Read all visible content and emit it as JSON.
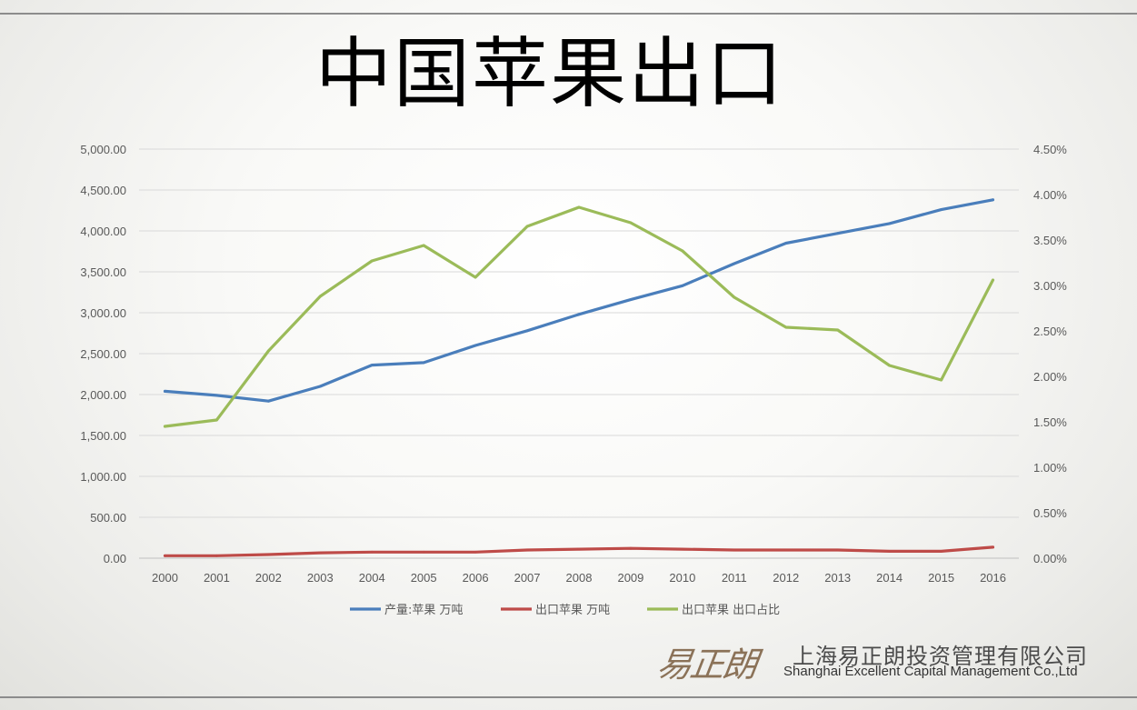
{
  "page": {
    "title": "中国苹果出口",
    "logo": {
      "mark": "易正朗",
      "name_cn": "上海易正朗投资管理有限公司",
      "name_en": "Shanghai Excellent Capital Management Co.,Ltd"
    }
  },
  "chart_data": {
    "type": "line",
    "title": "中国苹果出口",
    "categories": [
      "2000",
      "2001",
      "2002",
      "2003",
      "2004",
      "2005",
      "2006",
      "2007",
      "2008",
      "2009",
      "2010",
      "2011",
      "2012",
      "2013",
      "2014",
      "2015",
      "2016"
    ],
    "y_left": {
      "min": 0,
      "max": 5000,
      "step": 500,
      "ticks": [
        "0.00",
        "500.00",
        "1,000.00",
        "1,500.00",
        "2,000.00",
        "2,500.00",
        "3,000.00",
        "3,500.00",
        "4,000.00",
        "4,500.00",
        "5,000.00"
      ]
    },
    "y_right": {
      "min": 0,
      "max": 4.5,
      "step": 0.5,
      "ticks": [
        "0.00%",
        "0.50%",
        "1.00%",
        "1.50%",
        "2.00%",
        "2.50%",
        "3.00%",
        "3.50%",
        "4.00%",
        "4.50%"
      ]
    },
    "grid": true,
    "legend_position": "bottom",
    "series": [
      {
        "name": "产量:苹果 万吨",
        "axis": "left",
        "color": "#4a7ebb",
        "values": [
          2040,
          1990,
          1920,
          2100,
          2360,
          2390,
          2600,
          2780,
          2980,
          3160,
          3330,
          3600,
          3850,
          3970,
          4090,
          4260,
          4380
        ]
      },
      {
        "name": "出口苹果 万吨",
        "axis": "left",
        "color": "#be4b48",
        "values": [
          30,
          30,
          45,
          65,
          75,
          75,
          75,
          100,
          110,
          120,
          110,
          100,
          100,
          100,
          85,
          85,
          135
        ]
      },
      {
        "name": "出口苹果 出口占比",
        "axis": "right",
        "color": "#9bbb59",
        "values": [
          1.45,
          1.52,
          2.28,
          2.88,
          3.27,
          3.44,
          3.09,
          3.65,
          3.86,
          3.69,
          3.38,
          2.87,
          2.54,
          2.51,
          2.12,
          1.96,
          3.06
        ]
      }
    ]
  }
}
